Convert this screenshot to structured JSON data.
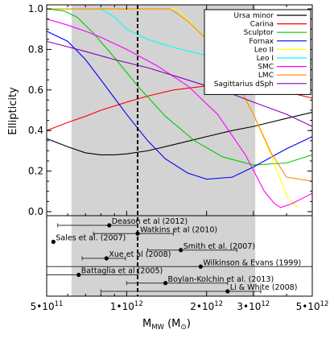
{
  "chart_data": {
    "type": "line",
    "ylabel": "Ellipticity",
    "xlabel_main": "M",
    "xlabel_sub": "MW",
    "xlabel_unit_open": " (M",
    "xlabel_unit_close": ")",
    "x_scale": "log",
    "xlim": [
      500000000000.0,
      5000000000000.0
    ],
    "ylim": [
      -0.02,
      1.02
    ],
    "grid": false,
    "legend_position": "top-right",
    "x_ticks": [
      {
        "value": 500000000000.0,
        "label": "5•10"
      },
      {
        "value": 1000000000000.0,
        "label": "1•10"
      },
      {
        "value": 2000000000000.0,
        "label": "2•10"
      },
      {
        "value": 3000000000000.0,
        "label": "3•10"
      },
      {
        "value": 5000000000000.0,
        "label": "5•10"
      }
    ],
    "x_tick_exponents": [
      "11",
      "12",
      "12",
      "12",
      "12"
    ],
    "y_ticks": [
      0.0,
      0.2,
      0.4,
      0.6,
      0.8,
      1.0
    ],
    "y_tick_labels": [
      "0.0",
      "0.2",
      "0.4",
      "0.6",
      "0.8",
      "1.0"
    ],
    "shaded_range": [
      620000000000.0,
      3050000000000.0
    ],
    "shaded_color": "#d3d3d3",
    "reference_line_x": 1100000000000.0,
    "series": [
      {
        "name": "Ursa minor",
        "color": "#000000",
        "x": [
          500000000000.0,
          600000000000.0,
          700000000000.0,
          800000000000.0,
          900000000000.0,
          1000000000000.0,
          1200000000000.0,
          1500000000000.0,
          2000000000000.0,
          2500000000000.0,
          3000000000000.0,
          4000000000000.0,
          5000000000000.0
        ],
        "y": [
          0.36,
          0.32,
          0.29,
          0.28,
          0.28,
          0.285,
          0.3,
          0.33,
          0.37,
          0.4,
          0.42,
          0.46,
          0.49
        ]
      },
      {
        "name": "Carina",
        "color": "#ff0000",
        "x": [
          500000000000.0,
          600000000000.0,
          700000000000.0,
          800000000000.0,
          1000000000000.0,
          1200000000000.0,
          1500000000000.0,
          2000000000000.0,
          2400000000000.0,
          3000000000000.0,
          4000000000000.0,
          5000000000000.0
        ],
        "y": [
          0.4,
          0.44,
          0.47,
          0.5,
          0.54,
          0.57,
          0.6,
          0.62,
          0.63,
          0.62,
          0.59,
          0.56
        ]
      },
      {
        "name": "Sculptor",
        "color": "#00cc00",
        "x": [
          500000000000.0,
          580000000000.0,
          650000000000.0,
          750000000000.0,
          900000000000.0,
          1100000000000.0,
          1400000000000.0,
          1800000000000.0,
          2300000000000.0,
          3000000000000.0,
          4000000000000.0,
          5000000000000.0
        ],
        "y": [
          1.0,
          0.99,
          0.96,
          0.88,
          0.76,
          0.62,
          0.47,
          0.35,
          0.27,
          0.23,
          0.24,
          0.28
        ]
      },
      {
        "name": "Fornax",
        "color": "#0000ff",
        "x": [
          500000000000.0,
          600000000000.0,
          700000000000.0,
          800000000000.0,
          900000000000.0,
          1000000000000.0,
          1200000000000.0,
          1400000000000.0,
          1700000000000.0,
          2000000000000.0,
          2500000000000.0,
          3000000000000.0,
          4000000000000.0,
          5000000000000.0
        ],
        "y": [
          0.89,
          0.84,
          0.75,
          0.65,
          0.56,
          0.48,
          0.35,
          0.26,
          0.19,
          0.16,
          0.17,
          0.22,
          0.31,
          0.37
        ]
      },
      {
        "name": "Leo II",
        "color": "#ffff00",
        "x": [
          500000000000.0,
          1000000000000.0,
          1500000000000.0,
          1550000000000.0,
          1900000000000.0,
          2500000000000.0,
          3000000000000.0,
          3500000000000.0,
          4000000000000.0,
          4400000000000.0
        ],
        "y": [
          1.0,
          1.0,
          1.0,
          1.0,
          0.88,
          0.67,
          0.48,
          0.28,
          0.08,
          0.02
        ]
      },
      {
        "name": "Leo I",
        "color": "#00ffff",
        "x": [
          500000000000.0,
          800000000000.0,
          900000000000.0,
          1000000000000.0,
          1200000000000.0,
          1500000000000.0,
          2000000000000.0,
          3000000000000.0,
          4000000000000.0,
          5000000000000.0
        ],
        "y": [
          1.0,
          1.0,
          0.96,
          0.9,
          0.85,
          0.81,
          0.77,
          0.75,
          0.735,
          0.73
        ]
      },
      {
        "name": "SMC",
        "color": "#ff00ff",
        "x": [
          500000000000.0,
          600000000000.0,
          700000000000.0,
          800000000000.0,
          1000000000000.0,
          1300000000000.0,
          1700000000000.0,
          2200000000000.0,
          2800000000000.0,
          3300000000000.0,
          3600000000000.0,
          3800000000000.0,
          4200000000000.0,
          5000000000000.0
        ],
        "y": [
          0.95,
          0.92,
          0.89,
          0.86,
          0.8,
          0.72,
          0.62,
          0.48,
          0.28,
          0.1,
          0.04,
          0.02,
          0.04,
          0.09
        ]
      },
      {
        "name": "LMC",
        "color": "#ff8800",
        "x": [
          500000000000.0,
          1450000000000.0,
          1500000000000.0,
          1700000000000.0,
          2000000000000.0,
          2500000000000.0,
          3000000000000.0,
          3500000000000.0,
          4000000000000.0,
          5000000000000.0
        ],
        "y": [
          1.0,
          1.0,
          0.99,
          0.94,
          0.85,
          0.68,
          0.48,
          0.29,
          0.17,
          0.15
        ]
      },
      {
        "name": "Sagittarius dSph",
        "color": "#8000c0",
        "x": [
          500000000000.0,
          700000000000.0,
          900000000000.0,
          1200000000000.0,
          1600000000000.0,
          2000000000000.0,
          2500000000000.0,
          3000000000000.0,
          4000000000000.0,
          5000000000000.0
        ],
        "y": [
          0.84,
          0.79,
          0.75,
          0.71,
          0.66,
          0.62,
          0.58,
          0.54,
          0.48,
          0.42
        ]
      }
    ],
    "mass_estimates": [
      {
        "label": "Deason et al (2012)",
        "value": 860000000000.0,
        "low": 550000000000.0,
        "high": 1100000000000.0
      },
      {
        "label": "Watkins et al (2010)",
        "value": 1100000000000.0,
        "low": 750000000000.0,
        "high": 1500000000000.0
      },
      {
        "label": "Sales et al. (2007)",
        "value": 530000000000.0,
        "low": null,
        "high": null
      },
      {
        "label": "Smith et al. (2007)",
        "value": 1600000000000.0,
        "low": 1200000000000.0,
        "high": 2600000000000.0
      },
      {
        "label": "Xue et al (2008)",
        "value": 840000000000.0,
        "low": 680000000000.0,
        "high": 990000000000.0
      },
      {
        "label": "Wilkinson & Evans (1999)",
        "value": 1900000000000.0,
        "low": 500000000000.0,
        "high": 5000000000000.0
      },
      {
        "label": "Battaglia et al (2005)",
        "value": 660000000000.0,
        "low": 500000000000.0,
        "high": 1100000000000.0
      },
      {
        "label": "Boylan-Kolchin et al. (2013)",
        "value": 1400000000000.0,
        "low": 1000000000000.0,
        "high": 2400000000000.0
      },
      {
        "label": "Li & White (2008)",
        "value": 2400000000000.0,
        "low": 800000000000.0,
        "high": 3200000000000.0
      }
    ]
  }
}
